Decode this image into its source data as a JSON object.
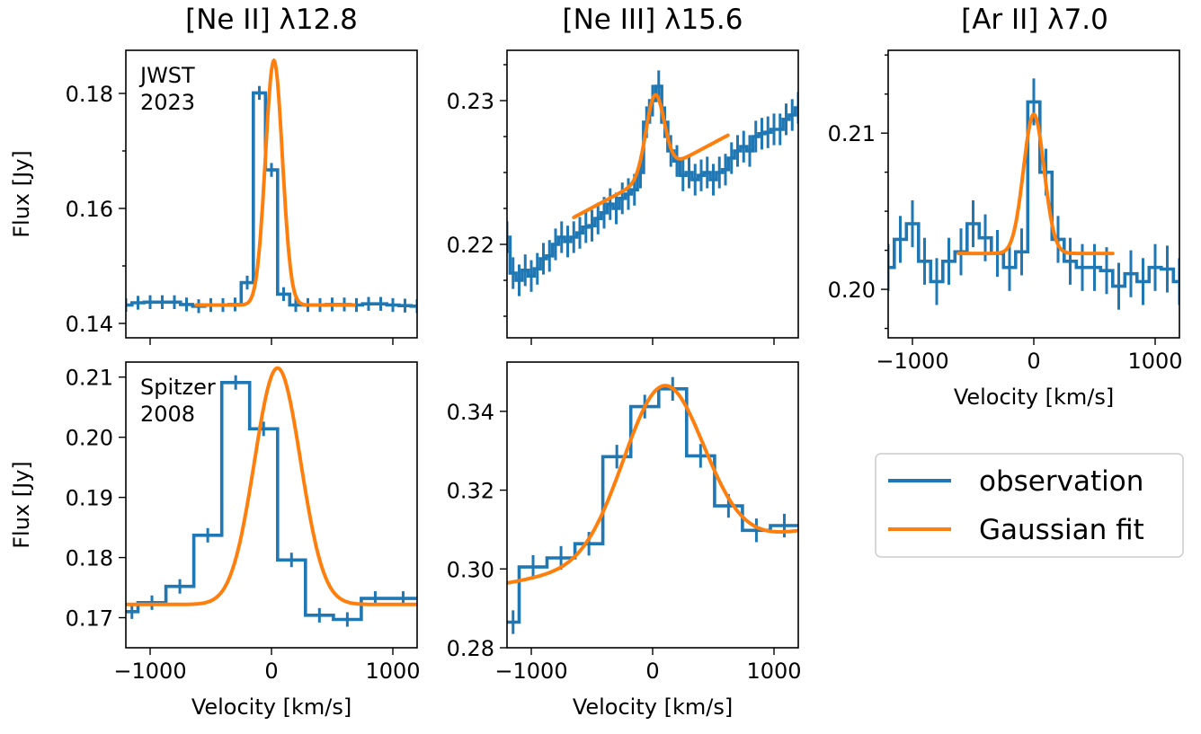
{
  "colors": {
    "observation": "#1f77b4",
    "fit": "#ff7f0e"
  },
  "legend": {
    "observation": "observation",
    "fit": "Gaussian fit",
    "placement": "right, below [Ar II] panel"
  },
  "chart_data": [
    {
      "id": "neii_jwst",
      "type": "line",
      "title": "[Ne II] λ12.8",
      "annotation": [
        "JWST",
        "2023"
      ],
      "xlabel": "",
      "ylabel": "Flux [Jy]",
      "xlim": [
        -1200,
        1200
      ],
      "ylim": [
        0.1375,
        0.1875
      ],
      "yticks": [
        "0.14",
        "0.16",
        "0.18"
      ],
      "ytick_values": [
        0.14,
        0.16,
        0.18
      ],
      "yminor": [
        0.15,
        0.17
      ],
      "xticks": [],
      "xtick_values": [
        -1000,
        0,
        1000
      ],
      "observation": {
        "x": [
          -1200,
          -1100,
          -1000,
          -900,
          -800,
          -700,
          -600,
          -500,
          -400,
          -300,
          -200,
          -100,
          0,
          100,
          200,
          300,
          400,
          500,
          600,
          700,
          800,
          900,
          1000,
          1100,
          1200
        ],
        "y": [
          0.1432,
          0.1436,
          0.1437,
          0.1437,
          0.1437,
          0.1433,
          0.143,
          0.1432,
          0.1432,
          0.1433,
          0.1471,
          0.1801,
          0.1667,
          0.1451,
          0.1432,
          0.1432,
          0.1432,
          0.1433,
          0.1433,
          0.1432,
          0.1434,
          0.1434,
          0.1432,
          0.1431,
          0.143
        ],
        "err": 0.0012
      },
      "fit": {
        "amplitude": 0.0425,
        "center": 20,
        "sigma": 70,
        "baseline": 0.1432,
        "slope": 0,
        "xmin": -620,
        "xmax": 680
      }
    },
    {
      "id": "neiii_jwst",
      "type": "line",
      "title": "[Ne III] λ15.6",
      "xlabel": "",
      "ylabel": "",
      "xlim": [
        -1200,
        1200
      ],
      "ylim": [
        0.2135,
        0.2335
      ],
      "yticks": [
        "0.22",
        "0.23"
      ],
      "ytick_values": [
        0.22,
        0.23
      ],
      "yminor": [
        0.215,
        0.2175,
        0.2225,
        0.225,
        0.2275,
        0.2325
      ],
      "xticks": [],
      "xtick_values": [
        -1000,
        0,
        1000
      ],
      "observation": {
        "x": [
          -1200,
          -1150,
          -1100,
          -1050,
          -1000,
          -950,
          -900,
          -850,
          -800,
          -750,
          -700,
          -650,
          -600,
          -550,
          -500,
          -450,
          -400,
          -350,
          -300,
          -250,
          -200,
          -150,
          -100,
          -50,
          0,
          50,
          100,
          150,
          200,
          250,
          300,
          350,
          400,
          450,
          500,
          550,
          600,
          650,
          700,
          750,
          800,
          850,
          900,
          950,
          1000,
          1050,
          1100,
          1150,
          1200
        ],
        "y": [
          0.2205,
          0.218,
          0.2175,
          0.2182,
          0.2178,
          0.2183,
          0.219,
          0.2192,
          0.22,
          0.2205,
          0.2202,
          0.2205,
          0.2208,
          0.2212,
          0.2213,
          0.2218,
          0.2222,
          0.2228,
          0.2225,
          0.2232,
          0.2235,
          0.2238,
          0.225,
          0.2285,
          0.23,
          0.231,
          0.2285,
          0.2265,
          0.2258,
          0.2248,
          0.225,
          0.2245,
          0.2248,
          0.225,
          0.2245,
          0.225,
          0.2252,
          0.226,
          0.2265,
          0.2268,
          0.2265,
          0.2275,
          0.2277,
          0.2278,
          0.228,
          0.228,
          0.2287,
          0.229,
          0.2295
        ],
        "err": 0.0011
      },
      "fit": {
        "amplitude": 0.0055,
        "center": 20,
        "sigma": 75,
        "baseline": 0.2248,
        "slope": 4.5e-06,
        "xmin": -650,
        "xmax": 620
      }
    },
    {
      "id": "arii_jwst",
      "type": "line",
      "title": "[Ar II] λ7.0",
      "xlabel": "Velocity [km/s]",
      "ylabel": "",
      "xlim": [
        -1200,
        1200
      ],
      "ylim": [
        0.1969,
        0.2153
      ],
      "yticks": [
        "0.20",
        "0.21"
      ],
      "ytick_values": [
        0.2,
        0.21
      ],
      "yminor": [
        0.1975,
        0.2025,
        0.205,
        0.2075,
        0.2125,
        0.215
      ],
      "xticks": [
        "−1000",
        "0",
        "1000"
      ],
      "xtick_values": [
        -1000,
        0,
        1000
      ],
      "observation": {
        "x": [
          -1200,
          -1100,
          -1000,
          -900,
          -800,
          -700,
          -600,
          -500,
          -400,
          -300,
          -200,
          -100,
          0,
          100,
          200,
          300,
          400,
          500,
          600,
          700,
          800,
          900,
          1000,
          1100,
          1200
        ],
        "y": [
          0.2014,
          0.2032,
          0.2042,
          0.2018,
          0.2005,
          0.2018,
          0.2024,
          0.2042,
          0.2033,
          0.2023,
          0.2014,
          0.2024,
          0.212,
          0.2075,
          0.2032,
          0.2018,
          0.2014,
          0.2014,
          0.2012,
          0.2002,
          0.201,
          0.2005,
          0.2014,
          0.2013,
          0.2005
        ],
        "err": 0.0015
      },
      "fit": {
        "amplitude": 0.0089,
        "center": 0,
        "sigma": 85,
        "baseline": 0.2023,
        "slope": 0,
        "xmin": -620,
        "xmax": 650
      }
    },
    {
      "id": "neii_spitzer",
      "type": "line",
      "title": "",
      "annotation": [
        "Spitzer",
        "2008"
      ],
      "xlabel": "Velocity [km/s]",
      "ylabel": "Flux [Jy]",
      "xlim": [
        -1200,
        1200
      ],
      "ylim": [
        0.165,
        0.2125
      ],
      "yticks": [
        "0.17",
        "0.18",
        "0.19",
        "0.20",
        "0.21"
      ],
      "ytick_values": [
        0.17,
        0.18,
        0.19,
        0.2,
        0.21
      ],
      "yminor": [],
      "xticks": [
        "−1000",
        "0",
        "1000"
      ],
      "xtick_values": [
        -1000,
        0,
        1000
      ],
      "observation": {
        "x": [
          -1100,
          -870,
          -640,
          -410,
          -180,
          50,
          280,
          510,
          740,
          970,
          1200
        ],
        "y": [
          0.171,
          0.1725,
          0.1752,
          0.1837,
          0.2091,
          0.2014,
          0.1796,
          0.1704,
          0.1697,
          0.1732,
          0.1732
        ],
        "x0": -1200,
        "err": 0.0012
      },
      "fit": {
        "amplitude": 0.0393,
        "center": 50,
        "sigma": 190,
        "baseline": 0.1722,
        "slope": 0,
        "xmin": -1200,
        "xmax": 1200
      }
    },
    {
      "id": "neiii_spitzer",
      "type": "line",
      "title": "",
      "xlabel": "Velocity [km/s]",
      "ylabel": "",
      "xlim": [
        -1200,
        1200
      ],
      "ylim": [
        0.28,
        0.3525
      ],
      "yticks": [
        "0.28",
        "0.30",
        "0.32",
        "0.34"
      ],
      "ytick_values": [
        0.28,
        0.3,
        0.32,
        0.34
      ],
      "yminor": [],
      "xticks": [
        "−1000",
        "0",
        "1000"
      ],
      "xtick_values": [
        -1000,
        0,
        1000
      ],
      "observation": {
        "x": [
          -1100,
          -870,
          -640,
          -410,
          -180,
          50,
          280,
          510,
          740,
          970,
          1200
        ],
        "y": [
          0.2865,
          0.3005,
          0.3028,
          0.3064,
          0.3285,
          0.3412,
          0.3457,
          0.3287,
          0.316,
          0.3098,
          0.311
        ],
        "x0": -1200,
        "err": 0.003
      },
      "fit": {
        "amplitude": 0.043,
        "center": 90,
        "sigma": 330,
        "baseline": 0.303,
        "slope": 5.5e-06,
        "xmin": -1200,
        "xmax": 1200
      }
    }
  ]
}
